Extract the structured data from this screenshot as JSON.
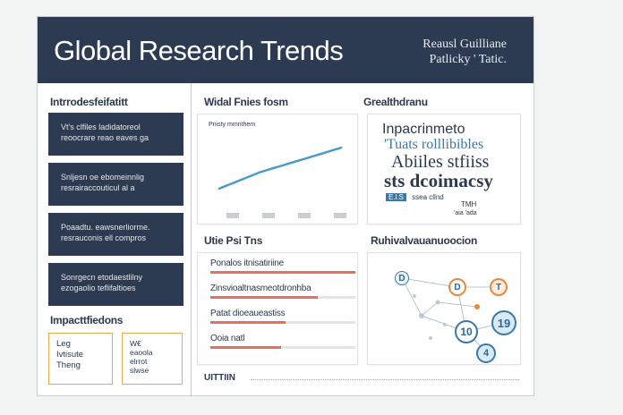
{
  "header": {
    "title": "Global Research Trends",
    "sub1": "Reausl Guilliane",
    "sub2": "Patlicky ' Tatic."
  },
  "left": {
    "intro_heading": "Intrrodesfeifatitt",
    "boxes": [
      {
        "l1": "Vt's clfiles ladidatoreol",
        "l2": "reoocrare reao eaves ga"
      },
      {
        "l1": "Snljesn oe ebomeinnlig",
        "l2": "resrairaccouticul al a"
      },
      {
        "l1": "Poaadtu. eawsnerliorme.",
        "l2": "resrauconis ell compros"
      },
      {
        "l1": "Sonrgecn etodaestlilny",
        "l2": "ezogaolio teflifaltioes"
      }
    ],
    "impact_heading": "Impacttfiedons",
    "impact_boxes": [
      {
        "l1": "Leg",
        "l2": "Ivtisute",
        "l3": "Theng"
      },
      {
        "l1": "W€",
        "l2": "eaoola",
        "l3": "elrrot",
        "l4": "slwse"
      }
    ]
  },
  "chart_card": {
    "heading": "Widal Fnies fosm",
    "label": "Pnisty mmrithem"
  },
  "chart_data": {
    "type": "line",
    "categories": [
      "",
      "",
      "",
      ""
    ],
    "values": [
      1.0,
      2.2,
      3.1,
      4.0
    ],
    "ylim": [
      0,
      5
    ]
  },
  "graph_card": {
    "heading": "Grealthdranu",
    "line1": "Inpacrinmeto",
    "line2": "'Tuats rolllibibles",
    "line3": "Abiiles stfiiss",
    "line4": "sts dcoimacsy",
    "tag": "E.l.S",
    "tag_rest": "ssea cllnd",
    "corner1": "TMH",
    "corner2": "'aia 'ada"
  },
  "trends_card": {
    "heading": "Utie Psi Tns",
    "bars": [
      {
        "label": "Ponalos itnisatiriine",
        "value": 1.0
      },
      {
        "label": "Zinsvioaltnasmeotdronhba",
        "value": 0.74
      },
      {
        "label": "Patat dioeaueastiss",
        "value": 0.52
      },
      {
        "label": "Ooia natl",
        "value": 0.49
      }
    ]
  },
  "network_card": {
    "heading": "Ruhivalvauanuoocion",
    "nodes": [
      "D",
      "D",
      "T",
      "19",
      "10",
      "4"
    ]
  },
  "footer_text": "UITTIIN"
}
